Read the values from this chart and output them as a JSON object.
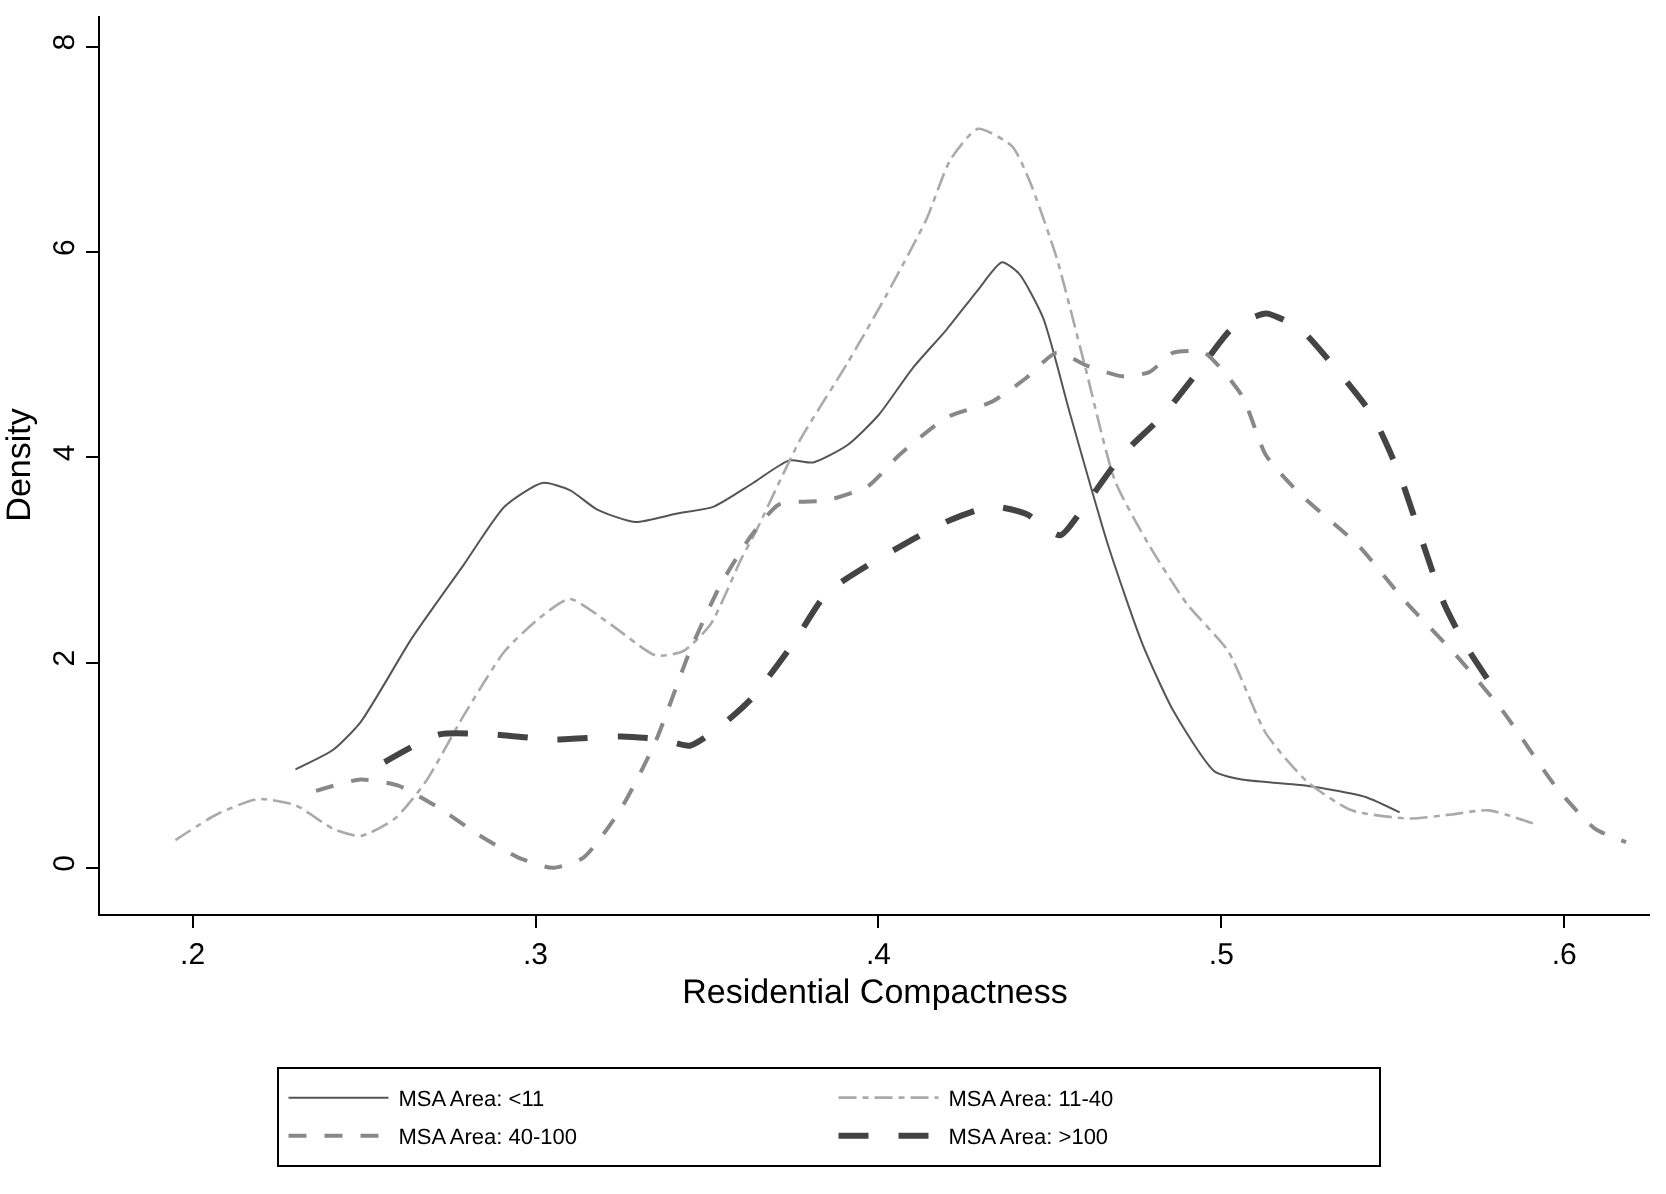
{
  "chart_data": {
    "type": "line",
    "xlabel": "Residential Compactness",
    "ylabel": "Density",
    "xlim": [
      0.173,
      0.625
    ],
    "ylim": [
      -0.45,
      8.3
    ],
    "xticks": [
      {
        "value": 0.2,
        "label": ".2"
      },
      {
        "value": 0.3,
        "label": ".3"
      },
      {
        "value": 0.4,
        "label": ".4"
      },
      {
        "value": 0.5,
        "label": ".5"
      },
      {
        "value": 0.6,
        "label": ".6"
      }
    ],
    "yticks": [
      0,
      2,
      4,
      6,
      8
    ],
    "legend": "bottom",
    "marker": "none",
    "series": [
      {
        "name": "MSA Area: <11",
        "color": "#555555",
        "line_style": "solid",
        "x": [
          0.23,
          0.241,
          0.249,
          0.264,
          0.279,
          0.291,
          0.302,
          0.31,
          0.318,
          0.329,
          0.341,
          0.352,
          0.363,
          0.374,
          0.381,
          0.391,
          0.4,
          0.41,
          0.42,
          0.429,
          0.436,
          0.441,
          0.448,
          0.456,
          0.467,
          0.477,
          0.486,
          0.498,
          0.506,
          0.525,
          0.542,
          0.552
        ],
        "values": [
          0.96,
          1.15,
          1.42,
          2.24,
          2.95,
          3.52,
          3.75,
          3.68,
          3.49,
          3.37,
          3.45,
          3.52,
          3.74,
          3.97,
          3.95,
          4.12,
          4.41,
          4.87,
          5.25,
          5.63,
          5.9,
          5.79,
          5.36,
          4.41,
          3.14,
          2.18,
          1.53,
          0.94,
          0.86,
          0.8,
          0.69,
          0.54
        ]
      },
      {
        "name": "MSA Area: 11-40",
        "color": "#aaaaaa",
        "line_style": "dashdot",
        "x": [
          0.195,
          0.207,
          0.219,
          0.23,
          0.241,
          0.249,
          0.259,
          0.268,
          0.279,
          0.291,
          0.301,
          0.31,
          0.322,
          0.335,
          0.343,
          0.351,
          0.36,
          0.364,
          0.377,
          0.391,
          0.402,
          0.414,
          0.421,
          0.429,
          0.439,
          0.444,
          0.452,
          0.46,
          0.469,
          0.479,
          0.49,
          0.502,
          0.513,
          0.525,
          0.538,
          0.555,
          0.567,
          0.578,
          0.592
        ],
        "values": [
          0.27,
          0.52,
          0.67,
          0.61,
          0.38,
          0.31,
          0.48,
          0.84,
          1.48,
          2.11,
          2.43,
          2.62,
          2.37,
          2.07,
          2.11,
          2.37,
          3.01,
          3.26,
          4.16,
          4.92,
          5.56,
          6.32,
          6.9,
          7.2,
          7.03,
          6.7,
          5.94,
          4.92,
          3.77,
          3.14,
          2.57,
          2.11,
          1.31,
          0.84,
          0.56,
          0.48,
          0.52,
          0.56,
          0.42
        ]
      },
      {
        "name": "MSA Area: 40-100",
        "color": "#888888",
        "line_style": "dashed",
        "x": [
          0.236,
          0.249,
          0.26,
          0.272,
          0.283,
          0.295,
          0.305,
          0.314,
          0.325,
          0.335,
          0.345,
          0.354,
          0.363,
          0.371,
          0.385,
          0.397,
          0.406,
          0.42,
          0.433,
          0.443,
          0.452,
          0.461,
          0.471,
          0.479,
          0.486,
          0.495,
          0.506,
          0.513,
          0.523,
          0.54,
          0.553,
          0.569,
          0.582,
          0.598,
          0.609,
          0.618
        ],
        "values": [
          0.75,
          0.86,
          0.8,
          0.58,
          0.33,
          0.1,
          0.0,
          0.1,
          0.58,
          1.23,
          2.11,
          2.76,
          3.24,
          3.54,
          3.58,
          3.72,
          4.02,
          4.39,
          4.54,
          4.77,
          5.02,
          4.89,
          4.79,
          4.83,
          5.02,
          5.02,
          4.6,
          4.02,
          3.64,
          3.14,
          2.62,
          2.05,
          1.53,
          0.77,
          0.38,
          0.25
        ]
      },
      {
        "name": "MSA Area: >100",
        "color": "#444444",
        "line_style": "longdash",
        "x": [
          0.256,
          0.272,
          0.287,
          0.306,
          0.325,
          0.337,
          0.345,
          0.354,
          0.363,
          0.375,
          0.385,
          0.397,
          0.41,
          0.421,
          0.433,
          0.443,
          0.453,
          0.46,
          0.471,
          0.483,
          0.494,
          0.503,
          0.513,
          0.523,
          0.532,
          0.544,
          0.552,
          0.559,
          0.565,
          0.571,
          0.578
        ],
        "values": [
          1.03,
          1.3,
          1.3,
          1.25,
          1.28,
          1.25,
          1.19,
          1.38,
          1.65,
          2.18,
          2.68,
          2.95,
          3.2,
          3.39,
          3.52,
          3.45,
          3.24,
          3.52,
          4.02,
          4.41,
          4.87,
          5.25,
          5.4,
          5.25,
          4.92,
          4.41,
          3.83,
          3.14,
          2.57,
          2.18,
          1.82
        ]
      }
    ]
  }
}
